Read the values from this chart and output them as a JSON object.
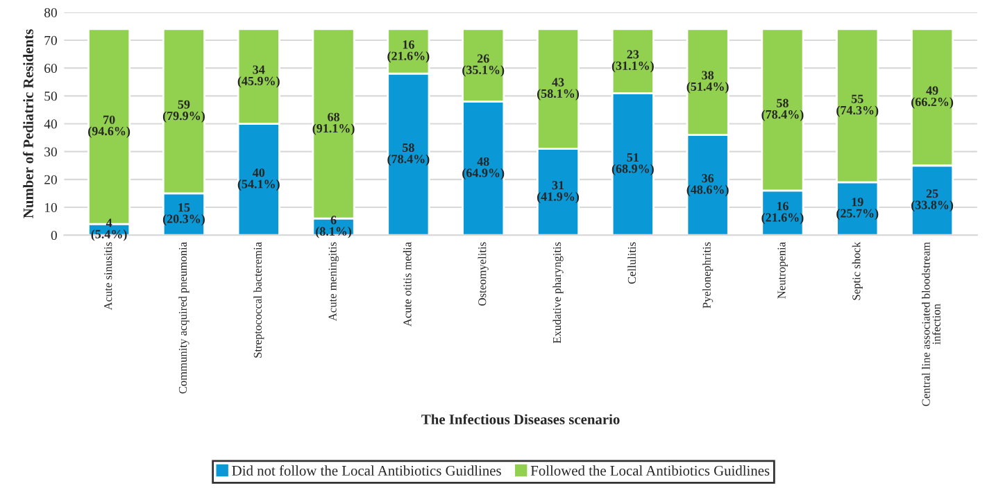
{
  "chart_data": {
    "type": "bar",
    "stacked": true,
    "xlabel": "The Infectious Diseases scenario",
    "ylabel": "Number of Pediatric Residents",
    "categories": [
      "Acute sinusitis",
      "Community acquired pneumonia",
      "Streptococcal bacteremia",
      "Acute meningitis",
      "Acute otitis media",
      "Osteomyelitis",
      "Exudative pharyngitis",
      "Cellulitis",
      "Pyelonephritis",
      "Neutropenia",
      "Septic shock",
      "Central line associated bloodstream\ninfection"
    ],
    "series": [
      {
        "name": "Did not follow the Local Antibiotics Guidlines",
        "color": "#0b98d6",
        "values": [
          4,
          15,
          40,
          6,
          58,
          48,
          31,
          51,
          36,
          16,
          19,
          25
        ],
        "value_labels": [
          "4\n(5.4%)",
          "15\n(20.3%)",
          "40\n(54.1%)",
          "6\n(8.1%)",
          "58\n(78.4%)",
          "48\n(64.9%)",
          "31\n(41.9%)",
          "51\n(68.9%)",
          "36\n(48.6%)",
          "16\n(21.6%)",
          "19\n(25.7%)",
          "25\n(33.8%)"
        ]
      },
      {
        "name": "Followed the Local Antibiotics Guidlines",
        "color": "#92d050",
        "values": [
          70,
          59,
          34,
          68,
          16,
          26,
          43,
          23,
          38,
          58,
          55,
          49
        ],
        "value_labels": [
          "70\n(94.6%)",
          "59\n(79.9%)",
          "34\n(45.9%)",
          "68\n(91.1%)",
          "16\n(21.6%)",
          "26\n(35.1%)",
          "43\n(58.1%)",
          "23\n(31.1%)",
          "38\n(51.4%)",
          "58\n(78.4%)",
          "55\n(74.3%)",
          "49\n(66.2%)"
        ]
      }
    ],
    "ylim": [
      0,
      80
    ],
    "yticks": [
      0,
      10,
      20,
      30,
      40,
      50,
      60,
      70,
      80
    ],
    "grid": "y",
    "legend": "bottom"
  }
}
